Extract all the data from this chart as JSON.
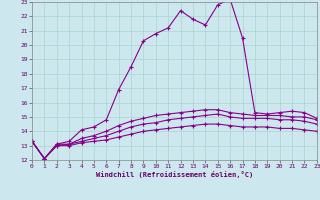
{
  "xlabel": "Windchill (Refroidissement éolien,°C)",
  "bg_color": "#cce8ee",
  "grid_color": "#aad4cc",
  "line_color": "#880088",
  "xlim": [
    0,
    23
  ],
  "ylim": [
    12,
    23
  ],
  "xticks": [
    0,
    1,
    2,
    3,
    4,
    5,
    6,
    7,
    8,
    9,
    10,
    11,
    12,
    13,
    14,
    15,
    16,
    17,
    18,
    19,
    20,
    21,
    22,
    23
  ],
  "yticks": [
    12,
    13,
    14,
    15,
    16,
    17,
    18,
    19,
    20,
    21,
    22,
    23
  ],
  "curve1_x": [
    0,
    1,
    2,
    3,
    4,
    5,
    6,
    7,
    8,
    9,
    10,
    11,
    12,
    13,
    14,
    15,
    16,
    17,
    18,
    19,
    20,
    21,
    22,
    23
  ],
  "curve1_y": [
    13.3,
    12.1,
    13.1,
    13.3,
    14.1,
    14.3,
    14.8,
    16.9,
    18.5,
    20.3,
    20.8,
    21.2,
    22.4,
    21.8,
    21.4,
    22.8,
    23.2,
    20.5,
    15.3,
    15.2,
    15.3,
    15.4,
    15.3,
    14.9
  ],
  "curve2_x": [
    0,
    1,
    2,
    3,
    4,
    5,
    6,
    7,
    8,
    9,
    10,
    11,
    12,
    13,
    14,
    15,
    16,
    17,
    18,
    19,
    20,
    21,
    22,
    23
  ],
  "curve2_y": [
    13.3,
    12.1,
    13.1,
    13.1,
    13.5,
    13.7,
    14.0,
    14.4,
    14.7,
    14.9,
    15.1,
    15.2,
    15.3,
    15.4,
    15.5,
    15.5,
    15.3,
    15.2,
    15.1,
    15.1,
    15.1,
    15.0,
    15.0,
    14.8
  ],
  "curve3_x": [
    0,
    1,
    2,
    3,
    4,
    5,
    6,
    7,
    8,
    9,
    10,
    11,
    12,
    13,
    14,
    15,
    16,
    17,
    18,
    19,
    20,
    21,
    22,
    23
  ],
  "curve3_y": [
    13.3,
    12.1,
    13.0,
    13.1,
    13.3,
    13.5,
    13.7,
    14.0,
    14.3,
    14.5,
    14.6,
    14.8,
    14.9,
    15.0,
    15.1,
    15.2,
    15.0,
    14.9,
    14.9,
    14.9,
    14.8,
    14.8,
    14.7,
    14.5
  ],
  "curve4_x": [
    0,
    1,
    2,
    3,
    4,
    5,
    6,
    7,
    8,
    9,
    10,
    11,
    12,
    13,
    14,
    15,
    16,
    17,
    18,
    19,
    20,
    21,
    22,
    23
  ],
  "curve4_y": [
    13.3,
    12.1,
    13.0,
    13.0,
    13.2,
    13.3,
    13.4,
    13.6,
    13.8,
    14.0,
    14.1,
    14.2,
    14.3,
    14.4,
    14.5,
    14.5,
    14.4,
    14.3,
    14.3,
    14.3,
    14.2,
    14.2,
    14.1,
    14.0
  ]
}
